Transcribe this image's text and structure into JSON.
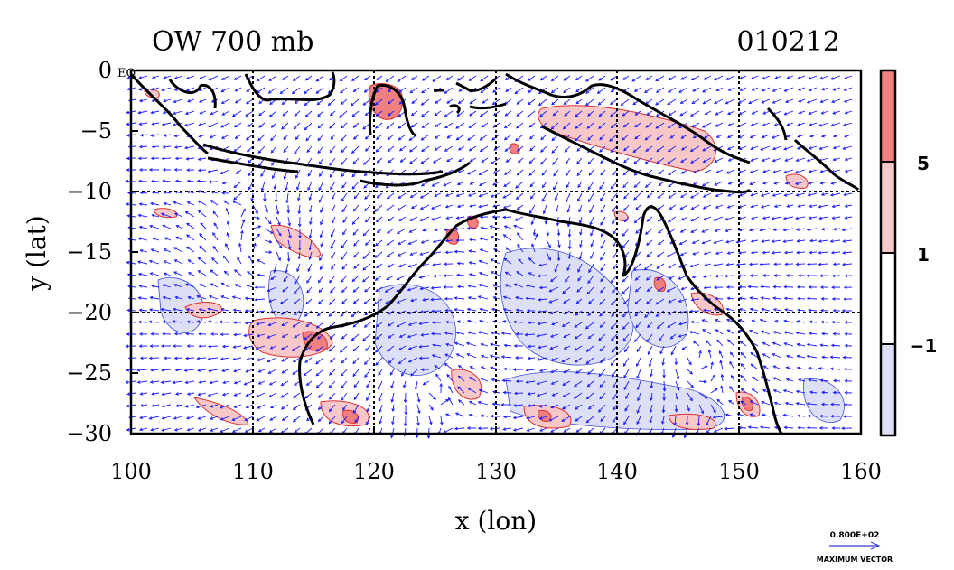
{
  "title": {
    "field": "OW 700 mb",
    "date": "010212"
  },
  "axes": {
    "xlabel": "x (lon)",
    "ylabel": "y (lat)",
    "x_ticks": [
      "100",
      "110",
      "120",
      "130",
      "140",
      "150",
      "160"
    ],
    "y_ticks": [
      "0",
      "−5",
      "−10",
      "−15",
      "−20",
      "−25",
      "−30"
    ],
    "y_top_suffix": "EQ"
  },
  "colorbar": {
    "labels": [
      "5",
      "1",
      "−1"
    ],
    "colors": [
      "#f08080",
      "#f8c8c8",
      "#ffffff",
      "#dcdff5"
    ]
  },
  "vector_key": {
    "value": "0.800E+02",
    "label": "MAXIMUM VECTOR"
  },
  "colors": {
    "vectors": "#1a1aff",
    "coast": "#000000",
    "positive": "#e03030",
    "negative": "#3040d0"
  },
  "chart_data": {
    "type": "map",
    "title": "OW 700 mb",
    "date": "010212",
    "xlabel": "x (lon)",
    "ylabel": "y (lat)",
    "xlim": [
      100,
      160
    ],
    "ylim": [
      -30,
      0
    ],
    "gridlines_lon": [
      110,
      120,
      130,
      140,
      150
    ],
    "gridlines_lat": [
      -10,
      -20
    ],
    "contour_levels": [
      -1,
      1,
      5
    ],
    "vector_max": 80
  }
}
